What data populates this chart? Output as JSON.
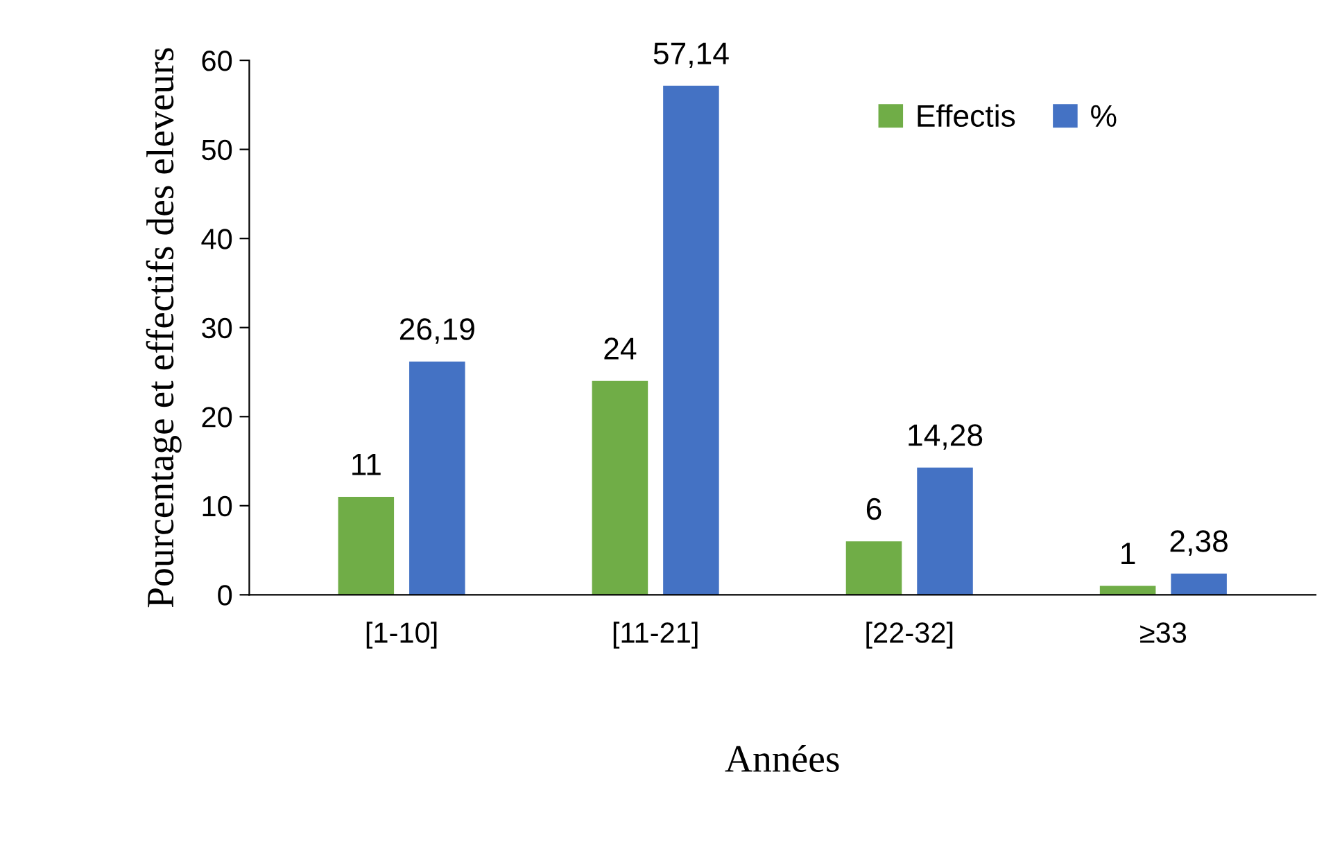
{
  "chart_data": {
    "type": "bar",
    "xlabel": "Années",
    "ylabel": "Pourcentage et effectifs des eleveurs",
    "categories": [
      "[1-10]",
      "[11-21]",
      "[22-32]",
      "≥33"
    ],
    "series": [
      {
        "name": "Effectis",
        "color": "#70ad47",
        "values": [
          11,
          24,
          6,
          1
        ],
        "value_labels": [
          "11",
          "24",
          "6",
          "1"
        ]
      },
      {
        "name": "%",
        "color": "#4472c4",
        "values": [
          26.19,
          57.14,
          14.28,
          2.38
        ],
        "value_labels": [
          "26,19",
          "57,14",
          "14,28",
          "2,38"
        ]
      }
    ],
    "ylim": [
      0,
      60
    ],
    "yticks": [
      0,
      10,
      20,
      30,
      40,
      50,
      60
    ],
    "grid": false,
    "legend": "top right"
  }
}
